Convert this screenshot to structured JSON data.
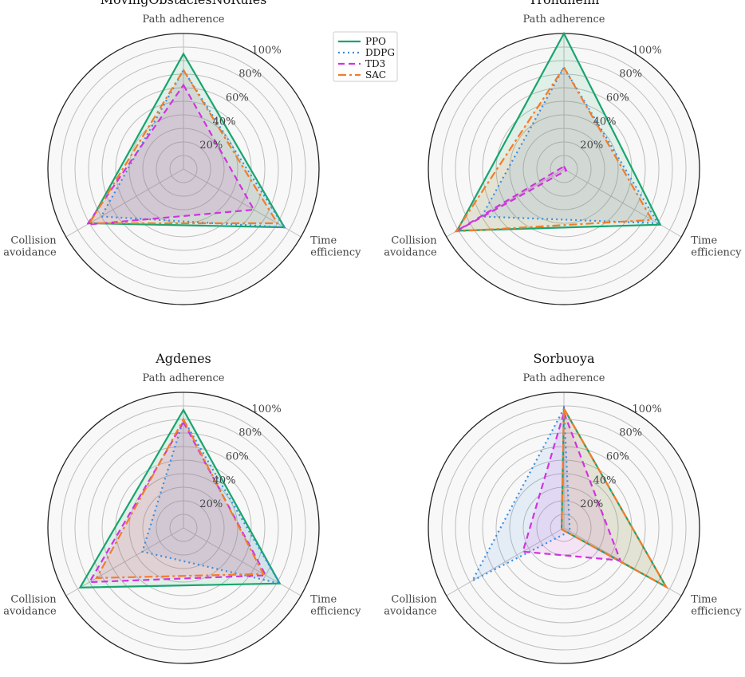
{
  "figure": {
    "legend": {
      "position": "upper-center",
      "entries": [
        {
          "name": "PPO",
          "color": "#19a56e",
          "dash": "solid"
        },
        {
          "name": "DDPG",
          "color": "#3a8de0",
          "dash": "dotted"
        },
        {
          "name": "TD3",
          "color": "#d133e0",
          "dash": "dashed"
        },
        {
          "name": "SAC",
          "color": "#f07d2a",
          "dash": "dashdot"
        }
      ]
    }
  },
  "chart_data": [
    {
      "type": "radar",
      "title": "MovingObstaclesNoRules",
      "axes": [
        "Path adherence",
        "Time efficiency",
        "Collision avoidance"
      ],
      "axis_lines": [
        [
          "Path adherence"
        ],
        [
          "Time",
          "efficiency"
        ],
        [
          "Collision",
          "avoidance"
        ]
      ],
      "ticks": [
        "20%",
        "40%",
        "60%",
        "80%",
        "100%"
      ],
      "rlim": [
        0,
        100
      ],
      "grid_rings": 10,
      "series": [
        {
          "name": "PPO",
          "values": [
            85,
            86,
            80
          ]
        },
        {
          "name": "DDPG",
          "values": [
            73,
            86,
            70
          ]
        },
        {
          "name": "TD3",
          "values": [
            62,
            60,
            82
          ]
        },
        {
          "name": "SAC",
          "values": [
            73,
            80,
            80
          ]
        }
      ]
    },
    {
      "type": "radar",
      "title": "Trondheim",
      "axes": [
        "Path adherence",
        "Time efficiency",
        "Collision avoidance"
      ],
      "axis_lines": [
        [
          "Path adherence"
        ],
        [
          "Time",
          "efficiency"
        ],
        [
          "Collision",
          "avoidance"
        ]
      ],
      "ticks": [
        "20%",
        "40%",
        "60%",
        "80%",
        "100%"
      ],
      "rlim": [
        0,
        100
      ],
      "grid_rings": 10,
      "series": [
        {
          "name": "PPO",
          "values": [
            100,
            82,
            91
          ]
        },
        {
          "name": "DDPG",
          "values": [
            75,
            80,
            70
          ]
        },
        {
          "name": "TD3",
          "values": [
            2,
            2,
            92
          ]
        },
        {
          "name": "SAC",
          "values": [
            75,
            75,
            92
          ]
        }
      ]
    },
    {
      "type": "radar",
      "title": "Agdenes",
      "axes": [
        "Path adherence",
        "Time efficiency",
        "Collision avoidance"
      ],
      "axis_lines": [
        [
          "Path adherence"
        ],
        [
          "Time",
          "efficiency"
        ],
        [
          "Collision",
          "avoidance"
        ]
      ],
      "ticks": [
        "20%",
        "40%",
        "60%",
        "80%",
        "100%"
      ],
      "rlim": [
        0,
        100
      ],
      "grid_rings": 10,
      "series": [
        {
          "name": "PPO",
          "values": [
            87,
            82,
            88
          ]
        },
        {
          "name": "DDPG",
          "values": [
            80,
            82,
            35
          ]
        },
        {
          "name": "TD3",
          "values": [
            78,
            70,
            80
          ]
        },
        {
          "name": "SAC",
          "values": [
            80,
            68,
            74
          ]
        }
      ]
    },
    {
      "type": "radar",
      "title": "Sorbuoya",
      "axes": [
        "Path adherence",
        "Time efficiency",
        "Collision avoidance"
      ],
      "axis_lines": [
        [
          "Path adherence"
        ],
        [
          "Time",
          "efficiency"
        ],
        [
          "Collision",
          "avoidance"
        ]
      ],
      "ticks": [
        "20%",
        "40%",
        "60%",
        "80%",
        "100%"
      ],
      "rlim": [
        0,
        100
      ],
      "grid_rings": 10,
      "series": [
        {
          "name": "PPO",
          "values": [
            88,
            87,
            2
          ]
        },
        {
          "name": "DDPG",
          "values": [
            88,
            5,
            78
          ]
        },
        {
          "name": "TD3",
          "values": [
            85,
            48,
            35
          ]
        },
        {
          "name": "SAC",
          "values": [
            88,
            87,
            2
          ]
        }
      ]
    }
  ]
}
